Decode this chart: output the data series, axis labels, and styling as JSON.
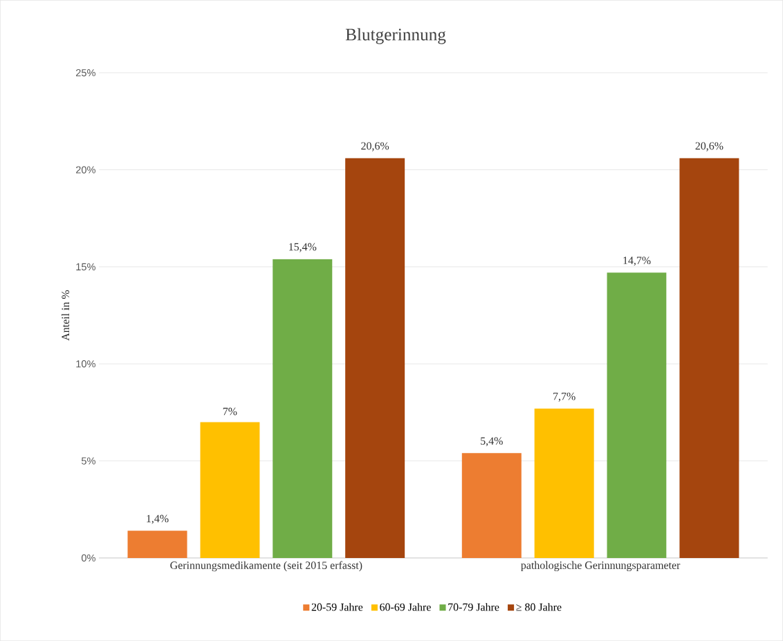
{
  "chart_data": {
    "type": "bar",
    "title": "Blutgerinnung",
    "ylabel": "Anteil in %",
    "categories": [
      "Gerinnungsmedikamente (seit 2015 erfasst)",
      "pathologische Gerinnungsparameter"
    ],
    "series": [
      {
        "name": "20-59 Jahre",
        "color": "#ed7d31",
        "values": [
          1.4,
          5.4
        ],
        "value_labels": [
          "1,4%",
          "5,4%"
        ]
      },
      {
        "name": "60-69 Jahre",
        "color": "#ffc000",
        "values": [
          7,
          7.7
        ],
        "value_labels": [
          "7%",
          "7,7%"
        ]
      },
      {
        "name": "70-79 Jahre",
        "color": "#70ad47",
        "values": [
          15.4,
          14.7
        ],
        "value_labels": [
          "15,4%",
          "14,7%"
        ]
      },
      {
        "name": "≥ 80 Jahre",
        "color": "#a5450e",
        "values": [
          20.6,
          20.6
        ],
        "value_labels": [
          "20,6%",
          "20,6%"
        ]
      }
    ],
    "ylim": [
      0,
      25
    ],
    "yticks": [
      {
        "value": 0,
        "label": "0%"
      },
      {
        "value": 5,
        "label": "5%"
      },
      {
        "value": 10,
        "label": "10%"
      },
      {
        "value": 15,
        "label": "15%"
      },
      {
        "value": 20,
        "label": "20%"
      },
      {
        "value": 25,
        "label": "25%"
      }
    ],
    "grid": "y",
    "legend": "bottom"
  }
}
